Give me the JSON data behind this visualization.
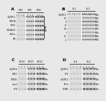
{
  "figure_bg": "#e8e8e8",
  "panels": [
    {
      "label": "a",
      "header_labels": [
        "CP2",
        "CP2",
        "CP4"
      ],
      "header_sublabels": [
        "s1 s2 s3 s4",
        "s1 s2 s3 s4",
        "s1 s2 s3 s4"
      ],
      "col_groups": 3,
      "cols_per_group": 4,
      "row_labels_left": [
        "UQCRC1",
        "SDH-A",
        "COX1",
        "SDHA-V2",
        "COX-a",
        "TPr"
      ],
      "row_labels_right": [],
      "num_cols": 12,
      "num_rows": 6,
      "has_bracket_right": true,
      "band_patterns": [
        [
          0.25,
          0.22,
          0.2,
          0.23,
          0.55,
          0.5,
          0.45,
          0.52,
          0.7,
          0.65,
          0.6,
          0.68
        ],
        [
          0.2,
          0.22,
          0.21,
          0.2,
          0.45,
          0.48,
          0.5,
          0.46,
          0.6,
          0.62,
          0.65,
          0.61
        ],
        [
          0.22,
          0.2,
          0.23,
          0.21,
          0.48,
          0.45,
          0.47,
          0.49,
          0.65,
          0.63,
          0.66,
          0.64
        ],
        [
          0.21,
          0.23,
          0.2,
          0.22,
          0.5,
          0.52,
          0.48,
          0.51,
          0.68,
          0.66,
          0.7,
          0.67
        ],
        [
          0.2,
          0.21,
          0.22,
          0.2,
          0.46,
          0.44,
          0.43,
          0.45,
          0.63,
          0.61,
          0.62,
          0.63
        ],
        [
          0.25,
          0.24,
          0.25,
          0.24,
          0.52,
          0.5,
          0.51,
          0.53,
          0.66,
          0.65,
          0.67,
          0.66
        ]
      ]
    },
    {
      "label": "b",
      "header_labels": [
        "SL1",
        "SL1"
      ],
      "header_sublabels": [
        "s1 s2 s3 s4 s5 s6",
        "s1 s2 s3 s4 s5 s6"
      ],
      "col_groups": 2,
      "cols_per_group": 6,
      "row_labels_left": [
        "UQCRC1",
        "CII",
        "III",
        "I-L",
        "V-s",
        "II",
        "HL",
        "JL"
      ],
      "row_labels_right": [
        "kDa",
        "kDa",
        "kDa",
        "kDa",
        "kDa",
        "kDa",
        "kDa",
        "kDa"
      ],
      "num_cols": 12,
      "num_rows": 8,
      "has_bracket_right": false,
      "band_patterns": [
        [
          0.22,
          0.2,
          0.18,
          0.21,
          0.2,
          0.19,
          0.55,
          0.5,
          0.45,
          0.52,
          0.48,
          0.5
        ],
        [
          0.2,
          0.22,
          0.21,
          0.2,
          0.22,
          0.21,
          0.48,
          0.45,
          0.5,
          0.46,
          0.44,
          0.47
        ],
        [
          0.25,
          0.23,
          0.24,
          0.25,
          0.23,
          0.24,
          0.6,
          0.58,
          0.62,
          0.59,
          0.57,
          0.6
        ],
        [
          0.2,
          0.21,
          0.22,
          0.2,
          0.21,
          0.22,
          0.5,
          0.52,
          0.48,
          0.51,
          0.49,
          0.5
        ],
        [
          0.22,
          0.2,
          0.21,
          0.22,
          0.2,
          0.21,
          0.46,
          0.44,
          0.47,
          0.45,
          0.43,
          0.46
        ],
        [
          0.18,
          0.2,
          0.19,
          0.18,
          0.2,
          0.19,
          0.42,
          0.4,
          0.43,
          0.41,
          0.39,
          0.42
        ],
        [
          0.21,
          0.23,
          0.22,
          0.21,
          0.23,
          0.22,
          0.52,
          0.54,
          0.5,
          0.53,
          0.51,
          0.52
        ],
        [
          0.24,
          0.22,
          0.23,
          0.24,
          0.22,
          0.23,
          0.55,
          0.53,
          0.56,
          0.54,
          0.52,
          0.55
        ]
      ]
    },
    {
      "label": "c",
      "header_labels": [
        "EP2C",
        "EP2C",
        "EP2C"
      ],
      "header_sublabels": [
        "",
        "",
        ""
      ],
      "col_groups": 3,
      "cols_per_group": 3,
      "row_labels_left": [
        "UQCRC2",
        "MLT2",
        "FOXO1",
        "smc1",
        "CTH"
      ],
      "row_labels_right": [
        "kDa",
        "kDa",
        "kDa",
        "kDa",
        "kDa"
      ],
      "num_cols": 9,
      "num_rows": 5,
      "has_bracket_right": false,
      "band_patterns": [
        [
          0.2,
          0.22,
          0.21,
          0.5,
          0.48,
          0.52,
          0.65,
          0.63,
          0.66
        ],
        [
          0.22,
          0.2,
          0.23,
          0.48,
          0.46,
          0.5,
          0.62,
          0.6,
          0.63
        ],
        [
          0.21,
          0.23,
          0.2,
          0.52,
          0.5,
          0.54,
          0.68,
          0.66,
          0.7
        ],
        [
          0.2,
          0.21,
          0.22,
          0.46,
          0.44,
          0.48,
          0.6,
          0.58,
          0.62
        ],
        [
          0.23,
          0.21,
          0.24,
          0.55,
          0.53,
          0.57,
          0.7,
          0.68,
          0.72
        ]
      ]
    },
    {
      "label": "d",
      "header_labels": [
        "SL2",
        "SL2"
      ],
      "header_sublabels": [
        "",
        ""
      ],
      "col_groups": 2,
      "cols_per_group": 4,
      "row_labels_left": [
        "UQCRC1",
        "CTH",
        "UQCRC1",
        "RP-S",
        "CTIM2"
      ],
      "row_labels_right": [
        "kDa",
        "kDa",
        "kDa",
        "kDa",
        "kDa"
      ],
      "num_cols": 8,
      "num_rows": 5,
      "has_bracket_right": false,
      "band_patterns": [
        [
          0.22,
          0.2,
          0.23,
          0.21,
          0.55,
          0.53,
          0.57,
          0.54
        ],
        [
          0.2,
          0.22,
          0.21,
          0.2,
          0.5,
          0.48,
          0.52,
          0.49
        ],
        [
          0.23,
          0.21,
          0.24,
          0.22,
          0.58,
          0.56,
          0.6,
          0.57
        ],
        [
          0.21,
          0.23,
          0.2,
          0.22,
          0.52,
          0.5,
          0.54,
          0.51
        ],
        [
          0.24,
          0.22,
          0.25,
          0.23,
          0.62,
          0.6,
          0.64,
          0.61
        ]
      ]
    }
  ]
}
